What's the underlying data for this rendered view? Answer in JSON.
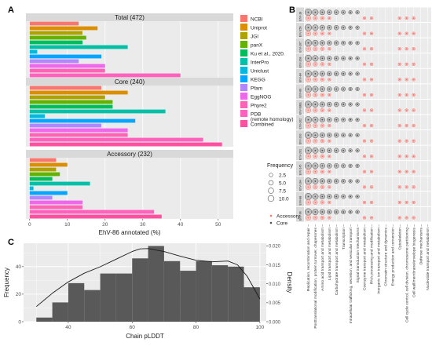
{
  "panel_labels": [
    "A",
    "B",
    "C"
  ],
  "colors": {
    "NCBI": "#F8766D",
    "Uniprot": "#DB8E00",
    "JGI": "#AEA200",
    "panX": "#64B200",
    "Ku et al., 2020.": "#00BD5C",
    "InterPro": "#00C1A7",
    "Uniclust": "#00BADE",
    "KEGG": "#00A6FF",
    "Pfam": "#B385FF",
    "EggNOG": "#EF67EB",
    "Phyre2": "#FF63B6",
    "Combined": "#FF4FA0",
    "facet_strip": "#D9D9D9",
    "panel_bg": "#EBEBEB",
    "grid": "#FFFFFF",
    "hist_fill": "#595959",
    "dot_gray": "#4D4D4D",
    "dot_red": "#F8766D"
  },
  "chart_data": [
    {
      "type": "bar",
      "panel": "A",
      "orientation": "horizontal",
      "facets": [
        "Total (472)",
        "Core (240)",
        "Accessory (232)"
      ],
      "categories": [
        "NCBI",
        "Uniprot",
        "JGI",
        "panX",
        "Ku et al., 2020.",
        "InterPro",
        "Uniclust",
        "KEGG",
        "Pfam",
        "EggNOG",
        "Phyre2",
        "PDB\n(remote homology)",
        "Combined"
      ],
      "legend_labels": [
        "NCBI",
        "Uniprot",
        "JGI",
        "panX",
        "Ku et al., 2020.",
        "InterPro",
        "Uniclust",
        "KEGG",
        "Pfam",
        "EggNOG",
        "Phyre2",
        "PDB",
        "(remote homology)",
        "Combined"
      ],
      "series": [
        {
          "values": [
            13,
            18,
            14,
            15,
            14,
            26,
            2,
            19,
            13,
            20,
            20,
            40,
            43
          ]
        },
        {
          "values": [
            19,
            26,
            20,
            22,
            22,
            36,
            4,
            28,
            19,
            26,
            26,
            46,
            51
          ]
        },
        {
          "values": [
            7,
            10,
            7,
            8,
            6,
            16,
            1,
            10,
            6,
            14,
            14,
            33,
            35
          ]
        }
      ],
      "xlabel": "EhV-86 annotated (%)",
      "x_ticks": [
        0,
        10,
        20,
        30,
        40,
        50
      ],
      "xlim": [
        -1,
        54
      ]
    },
    {
      "type": "scatter",
      "panel": "B",
      "rows": [
        "EhV-18",
        "EhV-156",
        "EhV-207",
        "EhV-208",
        "EhV-84",
        "EhV-86",
        "EhV-99B1",
        "EhV-202",
        "EhV-203",
        "EhV-201",
        "EhV-145",
        "EhV-164",
        "EhV-88",
        "EhV-99"
      ],
      "categories": [
        "Replication, recombination and repair",
        "Posttranslational modification, protein turnover, chaperones",
        "Amino acid transport and metabolism",
        "Lipid transport and metabolism",
        "Carbohydrate transport and metabolism",
        "Transcription",
        "Intracellular trafficking, secretion, and vesicular transport",
        "Signal transduction mechanisms",
        "Coenzyme transport and metabolism",
        "RNA processing and modification",
        "Inorganic ion transport and metabolism",
        "Chromatin structure and dynamics",
        "Energy production and conversion",
        "Cytoskeleton",
        "Cell cycle control, cell division, chromosome partitioning",
        "Cell wall/membrane/envelope biogenesis",
        "Defense mechanisms",
        "Nucleotide transport and metabolism"
      ],
      "size_legend": {
        "title": "Frequency",
        "values": [
          2.5,
          5.0,
          7.5,
          10.0
        ],
        "labels": [
          "2.5",
          "5.0",
          "7.5",
          "10.0"
        ]
      },
      "color_legend": [
        "Accessory",
        "Core"
      ],
      "core": [
        10,
        7,
        5,
        4,
        4,
        3,
        2,
        2,
        0,
        0,
        0,
        0,
        0,
        0,
        0,
        0,
        0,
        0
      ],
      "accessory": [
        5,
        3,
        2,
        1,
        0,
        0,
        0,
        0,
        1,
        1,
        0,
        0,
        0,
        1,
        1,
        1,
        0,
        0
      ]
    },
    {
      "type": "histogram",
      "panel": "C",
      "xlabel": "Chain pLDDT",
      "ylabel": "Frequency",
      "ylabel_right": "Density",
      "bin_edges": [
        30,
        35,
        40,
        45,
        50,
        55,
        60,
        65,
        70,
        75,
        80,
        85,
        90,
        95,
        100
      ],
      "counts": [
        3,
        14,
        28,
        23,
        35,
        35,
        46,
        55,
        44,
        37,
        44,
        41,
        40,
        25
      ],
      "x_ticks": [
        40,
        60,
        80,
        100
      ],
      "y_ticks": [
        0,
        20,
        40
      ],
      "ylim": [
        0,
        57
      ],
      "density_ticks": [
        0.0,
        0.005,
        0.01,
        0.015,
        0.02
      ],
      "density_tick_labels": [
        "0.000",
        "0.005",
        "0.010",
        "0.015",
        "0.020"
      ],
      "density_ylim": [
        0,
        0.0207
      ],
      "density_curve": {
        "x": [
          30,
          35,
          40,
          45,
          50,
          55,
          60,
          62.5,
          65,
          70,
          75,
          80,
          85,
          90,
          93,
          96,
          100
        ],
        "y": [
          0.004,
          0.0075,
          0.0105,
          0.0128,
          0.0145,
          0.0165,
          0.0185,
          0.0192,
          0.0193,
          0.0185,
          0.0173,
          0.0162,
          0.0158,
          0.016,
          0.015,
          0.012,
          0.006
        ]
      }
    }
  ]
}
